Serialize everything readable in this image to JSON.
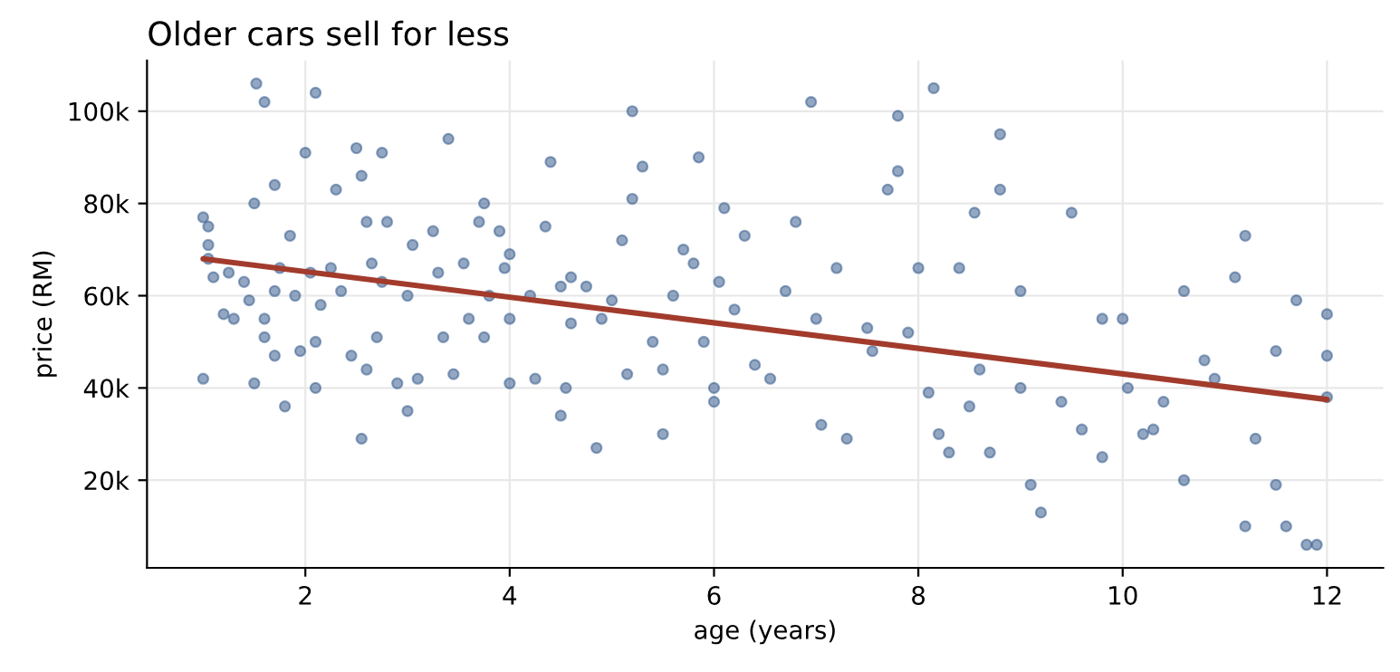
{
  "chart_data": {
    "type": "scatter",
    "title": "Older cars sell for less",
    "xlabel": "age (years)",
    "ylabel": "price (RM)",
    "xlim": [
      0.45,
      12.55
    ],
    "xticks": [
      2,
      4,
      6,
      8,
      10,
      12
    ],
    "ylim": [
      1000,
      111000
    ],
    "yticks": [
      {
        "value": 20000,
        "label": "20k"
      },
      {
        "value": 40000,
        "label": "40k"
      },
      {
        "value": 60000,
        "label": "60k"
      },
      {
        "value": 80000,
        "label": "80k"
      },
      {
        "value": 100000,
        "label": "100k"
      }
    ],
    "grid": true,
    "marker": "circle",
    "series": [
      {
        "color": "#3b5f8f",
        "x": [
          1.0,
          1.05,
          1.05,
          1.05,
          1.0,
          1.1,
          1.2,
          1.25,
          1.3,
          1.4,
          1.45,
          1.5,
          1.5,
          1.52,
          1.6,
          1.6,
          1.6,
          1.7,
          1.7,
          1.7,
          1.75,
          1.8,
          1.85,
          1.9,
          1.95,
          2.0,
          2.05,
          2.1,
          2.1,
          2.1,
          2.15,
          2.25,
          2.3,
          2.35,
          2.45,
          2.5,
          2.55,
          2.55,
          2.6,
          2.6,
          2.65,
          2.7,
          2.75,
          2.75,
          2.8,
          2.9,
          3.0,
          3.0,
          3.05,
          3.1,
          3.25,
          3.3,
          3.35,
          3.4,
          3.45,
          3.55,
          3.6,
          3.7,
          3.75,
          3.75,
          3.8,
          3.9,
          3.95,
          4.0,
          4.0,
          4.0,
          4.2,
          4.25,
          4.35,
          4.4,
          4.5,
          4.5,
          4.55,
          4.6,
          4.6,
          4.75,
          4.85,
          4.9,
          5.0,
          5.1,
          5.15,
          5.2,
          5.2,
          5.3,
          5.4,
          5.5,
          5.5,
          5.6,
          5.7,
          5.8,
          5.85,
          5.9,
          6.0,
          6.0,
          6.05,
          6.1,
          6.2,
          6.3,
          6.4,
          6.55,
          6.7,
          6.8,
          6.95,
          7.0,
          7.05,
          7.2,
          7.3,
          7.5,
          7.55,
          7.7,
          7.8,
          7.8,
          7.9,
          8.0,
          8.1,
          8.15,
          8.2,
          8.3,
          8.4,
          8.5,
          8.55,
          8.7,
          8.8,
          8.8,
          9.0,
          9.1,
          9.2,
          9.4,
          9.5,
          9.6,
          9.8,
          10.0,
          10.05,
          10.2,
          10.4,
          10.6,
          10.6,
          10.9,
          11.1,
          11.2,
          11.2,
          11.3,
          11.5,
          11.6,
          11.7,
          11.8,
          11.9,
          12.0,
          12.0,
          12.0,
          11.5,
          10.8,
          10.3,
          9.8,
          9.0,
          8.6
        ],
        "values": [
          77000,
          75000,
          71000,
          68000,
          42000,
          64000,
          56000,
          65000,
          55000,
          63000,
          59000,
          41000,
          80000,
          106000,
          102000,
          55000,
          51000,
          84000,
          61000,
          47000,
          66000,
          36000,
          73000,
          60000,
          48000,
          91000,
          65000,
          104000,
          50000,
          40000,
          58000,
          66000,
          83000,
          61000,
          47000,
          92000,
          86000,
          29000,
          76000,
          44000,
          67000,
          51000,
          91000,
          63000,
          76000,
          41000,
          35000,
          60000,
          71000,
          42000,
          74000,
          65000,
          51000,
          94000,
          43000,
          67000,
          55000,
          76000,
          80000,
          51000,
          60000,
          74000,
          66000,
          41000,
          55000,
          69000,
          60000,
          42000,
          75000,
          89000,
          62000,
          34000,
          40000,
          54000,
          64000,
          62000,
          27000,
          55000,
          59000,
          72000,
          43000,
          81000,
          100000,
          88000,
          50000,
          44000,
          30000,
          60000,
          70000,
          67000,
          90000,
          50000,
          40000,
          37000,
          63000,
          79000,
          57000,
          73000,
          45000,
          42000,
          61000,
          76000,
          102000,
          55000,
          32000,
          66000,
          29000,
          53000,
          48000,
          83000,
          99000,
          87000,
          52000,
          66000,
          39000,
          105000,
          30000,
          26000,
          66000,
          36000,
          78000,
          26000,
          95000,
          83000,
          61000,
          19000,
          13000,
          37000,
          78000,
          31000,
          25000,
          55000,
          40000,
          30000,
          37000,
          20000,
          61000,
          42000,
          64000,
          73000,
          10000,
          29000,
          48000,
          10000,
          59000,
          6000,
          6000,
          56000,
          47000,
          38000,
          19000,
          46000,
          31000,
          55000,
          40000,
          44000
        ]
      },
      {
        "type": "line",
        "color": "#a23b2c",
        "x": [
          1,
          12
        ],
        "values": [
          68000,
          37500
        ],
        "marker": "none"
      }
    ]
  }
}
